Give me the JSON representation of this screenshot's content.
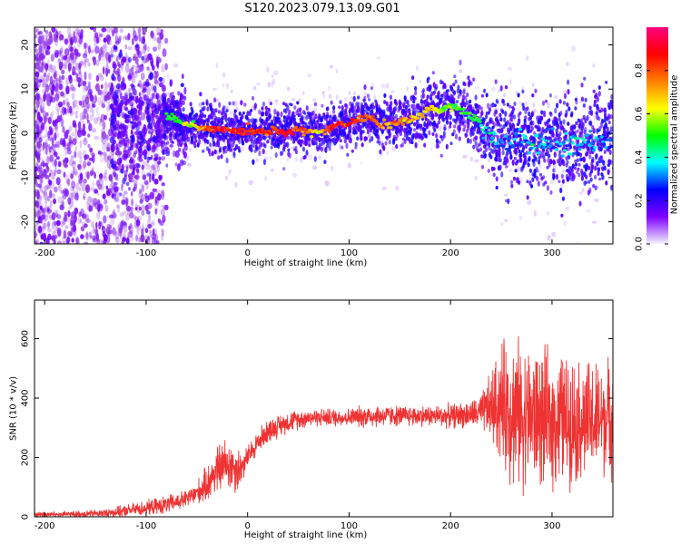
{
  "title": "S120.2023.079.13.09.G01",
  "chart_data": [
    {
      "type": "heatmap",
      "xlabel": "Height of straight line (km)",
      "ylabel": "Frequency (Hz)",
      "xlim": [
        -210,
        360
      ],
      "ylim": [
        -25,
        24
      ],
      "x_ticks": [
        -200,
        -100,
        0,
        100,
        200,
        300
      ],
      "y_ticks": [
        -20,
        -10,
        0,
        10,
        20
      ],
      "colorbar": {
        "label": "Normalized spectral amplitude",
        "range": [
          0.0,
          1.0
        ],
        "ticks": [
          0.0,
          0.2,
          0.4,
          0.6,
          0.8
        ],
        "colors": [
          "#f2f2ff",
          "#8000ff",
          "#0000ff",
          "#00ffff",
          "#00ff00",
          "#ffff00",
          "#ff8000",
          "#ff0000",
          "#ff0080"
        ]
      },
      "ridge": {
        "name": "dominant frequency trace",
        "x": [
          -80,
          -70,
          -60,
          -50,
          -40,
          -30,
          -20,
          0,
          20,
          40,
          50,
          60,
          70,
          80,
          90,
          100,
          110,
          120,
          130,
          140,
          150,
          160,
          170,
          180,
          190,
          200,
          210,
          220,
          230,
          240,
          250,
          260,
          270,
          280,
          290,
          300,
          310,
          320,
          330,
          340,
          350,
          360
        ],
        "y": [
          4,
          3,
          2,
          1.5,
          1,
          1,
          0.5,
          0.5,
          0.5,
          0.5,
          1,
          0.5,
          0,
          1,
          2,
          2,
          3.5,
          3.5,
          2,
          2,
          2.5,
          3,
          4,
          6,
          5,
          6,
          5,
          4,
          2,
          -1,
          -2,
          -2,
          -1,
          -2,
          -2,
          -2,
          -3,
          -2,
          -2,
          -2,
          -1,
          -2
        ],
        "amplitude": [
          0.45,
          0.5,
          0.6,
          0.65,
          0.8,
          0.85,
          0.85,
          0.85,
          0.85,
          0.85,
          0.8,
          0.75,
          0.6,
          0.85,
          0.85,
          0.85,
          0.8,
          0.8,
          0.75,
          0.7,
          0.75,
          0.7,
          0.65,
          0.7,
          0.55,
          0.55,
          0.5,
          0.45,
          0.45,
          0.35,
          0.3,
          0.3,
          0.3,
          0.35,
          0.35,
          0.3,
          0.3,
          0.35,
          0.35,
          0.3,
          0.3,
          0.3
        ]
      }
    },
    {
      "type": "line",
      "xlabel": "Height of straight line (km)",
      "ylabel": "SNR (10 * v/v)",
      "xlim": [
        -210,
        360
      ],
      "ylim": [
        0,
        730
      ],
      "x_ticks": [
        -200,
        -100,
        0,
        100,
        200,
        300
      ],
      "y_ticks": [
        0,
        200,
        400,
        600
      ],
      "series": [
        {
          "color": "#ee3333",
          "x": [
            -210,
            -200,
            -180,
            -160,
            -140,
            -120,
            -100,
            -80,
            -60,
            -50,
            -40,
            -30,
            -20,
            -10,
            -5,
            0,
            10,
            20,
            40,
            60,
            80,
            100,
            120,
            140,
            160,
            180,
            200,
            220,
            230,
            240,
            250,
            260,
            270,
            280,
            290,
            300,
            310,
            320,
            330,
            340,
            350,
            360
          ],
          "mean": [
            8,
            8,
            8,
            10,
            12,
            20,
            30,
            40,
            60,
            80,
            110,
            160,
            180,
            160,
            170,
            200,
            250,
            290,
            320,
            335,
            335,
            335,
            340,
            340,
            340,
            340,
            340,
            345,
            350,
            370,
            380,
            360,
            340,
            340,
            330,
            320,
            330,
            330,
            320,
            320,
            330,
            340
          ],
          "spread": [
            10,
            10,
            10,
            12,
            15,
            20,
            25,
            30,
            30,
            40,
            60,
            80,
            90,
            80,
            50,
            40,
            40,
            40,
            35,
            30,
            30,
            30,
            40,
            35,
            35,
            35,
            40,
            45,
            60,
            120,
            200,
            250,
            240,
            230,
            230,
            220,
            220,
            210,
            200,
            200,
            190,
            190
          ]
        }
      ]
    }
  ]
}
